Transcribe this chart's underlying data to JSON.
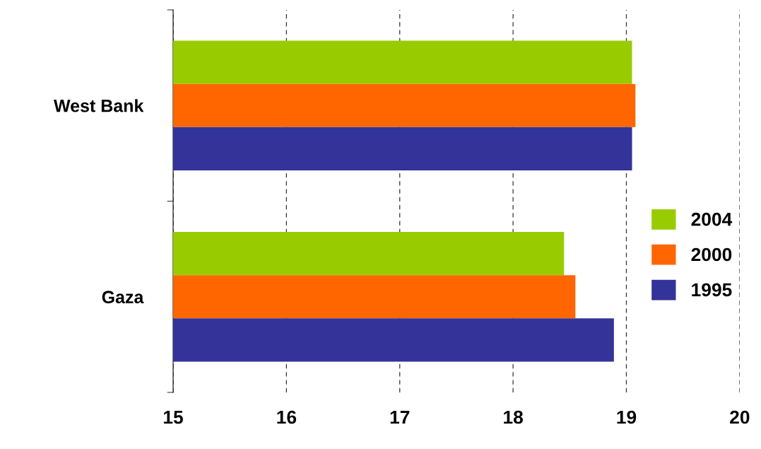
{
  "chart_data": {
    "type": "bar",
    "orientation": "horizontal",
    "categories": [
      "West Bank",
      "Gaza"
    ],
    "series": [
      {
        "name": "2004",
        "color": "#99cc00",
        "values": [
          19.05,
          18.45
        ]
      },
      {
        "name": "2000",
        "color": "#ff6600",
        "values": [
          19.08,
          18.55
        ]
      },
      {
        "name": "1995",
        "color": "#333399",
        "values": [
          19.05,
          18.89
        ]
      }
    ],
    "xlim": [
      15,
      20
    ],
    "xticks": [
      15,
      16,
      17,
      18,
      19,
      20
    ],
    "grid": "x",
    "legend": "right"
  }
}
